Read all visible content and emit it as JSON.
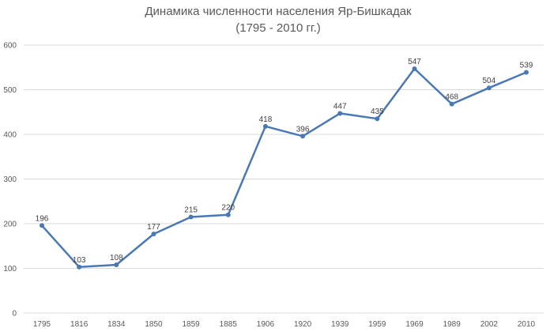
{
  "chart_data": {
    "type": "line",
    "title": "Динамика численности населения Яр-Бишкадак",
    "subtitle": "(1795 - 2010 гг.)",
    "categories": [
      "1795",
      "1816",
      "1834",
      "1850",
      "1859",
      "1885",
      "1906",
      "1920",
      "1939",
      "1959",
      "1969",
      "1989",
      "2002",
      "2010"
    ],
    "series": [
      {
        "values": [
          196,
          103,
          108,
          177,
          215,
          220,
          418,
          396,
          447,
          435,
          547,
          468,
          504,
          539
        ],
        "color": "#4a78b5"
      }
    ],
    "ylim": [
      0,
      600
    ],
    "yticks": [
      0,
      100,
      200,
      300,
      400,
      500,
      600
    ],
    "xlabel": "",
    "ylabel": "",
    "grid": true,
    "data_labels": true
  }
}
